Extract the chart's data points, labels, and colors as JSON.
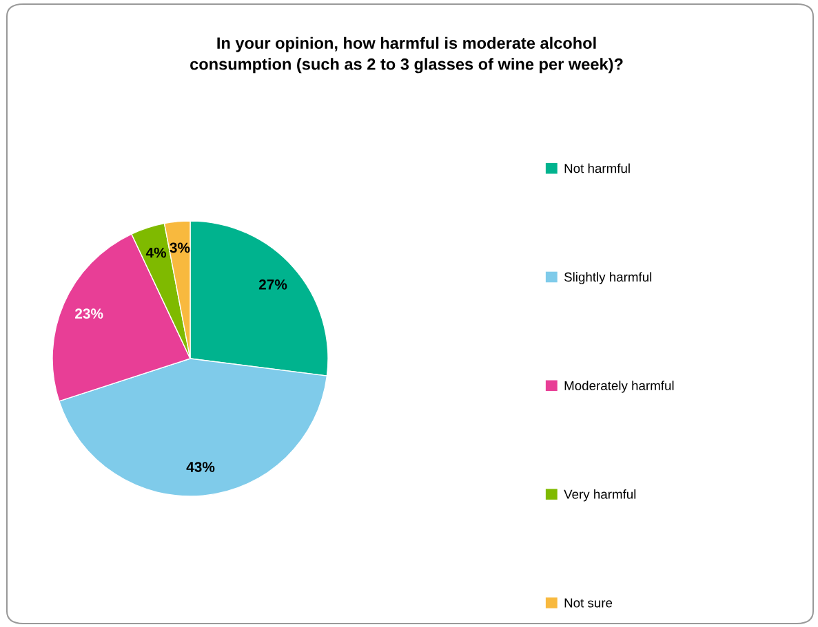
{
  "chart_data": {
    "type": "pie",
    "title": "In your opinion, how harmful is moderate alcohol\nconsumption (such as 2 to 3 glasses of wine per week)?",
    "categories": [
      "Not harmful",
      "Slightly harmful",
      "Moderately harmful",
      "Very harmful",
      "Not sure"
    ],
    "values": [
      27,
      43,
      23,
      4,
      3
    ],
    "colors": [
      "#00b38e",
      "#7fcbea",
      "#e83e96",
      "#7fba00",
      "#f8b93e"
    ],
    "value_labels": [
      "27%",
      "43%",
      "23%",
      "4%",
      "3%"
    ],
    "legend": "right"
  }
}
